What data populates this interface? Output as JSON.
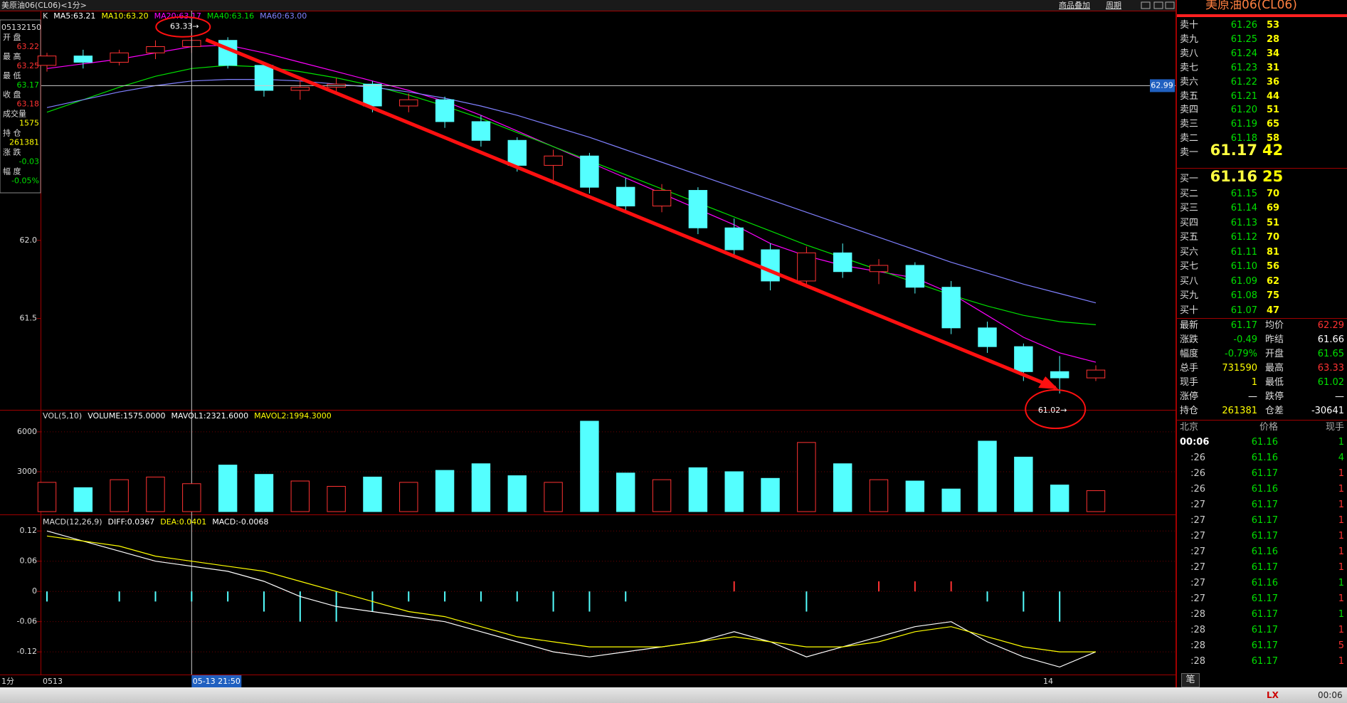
{
  "header": {
    "title": "美原油06(CL06)<1分>",
    "links": [
      "商品叠加",
      "周期"
    ]
  },
  "info": {
    "time": "05132150",
    "rows": [
      {
        "label": "开  盘",
        "value": "63.22",
        "color": "#ff3232"
      },
      {
        "label": "最  高",
        "value": "63.25",
        "color": "#ff3232"
      },
      {
        "label": "最  低",
        "value": "63.17",
        "color": "#00e000"
      },
      {
        "label": "收  盘",
        "value": "63.18",
        "color": "#ff3232"
      },
      {
        "label": "成交量",
        "value": "1575",
        "color": "#ffff00"
      },
      {
        "label": "持  仓",
        "value": "261381",
        "color": "#ffff00"
      },
      {
        "label": "涨  跌",
        "value": "-0.03",
        "color": "#00e000"
      },
      {
        "label": "幅  度",
        "value": "-0.05%",
        "color": "#00e000"
      }
    ]
  },
  "chart_data": [
    {
      "type": "candlestick",
      "title": "K",
      "legend": [
        {
          "label": "MA5:63.21",
          "color": "#ffffff"
        },
        {
          "label": "MA10:63.20",
          "color": "#ffff00"
        },
        {
          "label": "MA20:63.17",
          "color": "#ff00ff"
        },
        {
          "label": "MA40:63.16",
          "color": "#00e000"
        },
        {
          "label": "MA60:63.00",
          "color": "#8080ff"
        }
      ],
      "open": [
        63.12,
        63.18,
        63.14,
        63.2,
        63.24,
        63.28,
        63.12,
        62.96,
        62.98,
        63.0,
        62.86,
        62.9,
        62.76,
        62.64,
        62.48,
        62.54,
        62.34,
        62.22,
        62.32,
        62.08,
        61.94,
        61.74,
        61.92,
        61.8,
        61.84,
        61.7,
        61.44,
        61.32,
        61.16,
        61.12
      ],
      "high": [
        63.2,
        63.22,
        63.22,
        63.28,
        63.33,
        63.3,
        63.14,
        63.02,
        63.04,
        63.02,
        62.94,
        62.92,
        62.8,
        62.66,
        62.58,
        62.56,
        62.4,
        62.36,
        62.34,
        62.14,
        61.98,
        61.96,
        61.98,
        61.88,
        61.86,
        61.74,
        61.48,
        61.34,
        61.26,
        61.2
      ],
      "low": [
        63.08,
        63.1,
        63.12,
        63.16,
        63.2,
        63.1,
        62.92,
        62.9,
        62.94,
        62.82,
        62.82,
        62.72,
        62.6,
        62.44,
        62.36,
        62.3,
        62.18,
        62.18,
        62.04,
        61.9,
        61.68,
        61.72,
        61.76,
        61.72,
        61.66,
        61.4,
        61.28,
        61.1,
        61.02,
        61.1
      ],
      "close": [
        63.18,
        63.14,
        63.2,
        63.24,
        63.28,
        63.12,
        62.96,
        62.98,
        63.0,
        62.86,
        62.9,
        62.76,
        62.64,
        62.48,
        62.54,
        62.34,
        62.22,
        62.32,
        62.08,
        61.94,
        61.74,
        61.92,
        61.8,
        61.84,
        61.7,
        61.44,
        61.32,
        61.16,
        61.12,
        61.17
      ],
      "up_color": "#ff3232",
      "down_color": "#54ffff",
      "series": [
        {
          "color": "#ff00ff",
          "values": [
            63.1,
            63.13,
            63.16,
            63.2,
            63.24,
            63.25,
            63.2,
            63.14,
            63.08,
            63.02,
            62.96,
            62.89,
            62.8,
            62.7,
            62.6,
            62.5,
            62.4,
            62.3,
            62.2,
            62.1,
            61.98,
            61.9,
            61.84,
            61.8,
            61.76,
            61.66,
            61.52,
            61.38,
            61.28,
            61.22
          ]
        },
        {
          "color": "#00e000",
          "values": [
            62.82,
            62.9,
            62.98,
            63.05,
            63.1,
            63.12,
            63.11,
            63.08,
            63.04,
            62.99,
            62.93,
            62.86,
            62.78,
            62.69,
            62.6,
            62.51,
            62.42,
            62.33,
            62.24,
            62.15,
            62.06,
            61.97,
            61.89,
            61.81,
            61.73,
            61.65,
            61.58,
            61.52,
            61.48,
            61.46
          ]
        },
        {
          "color": "#8080ff",
          "values": [
            62.85,
            62.9,
            62.95,
            62.99,
            63.02,
            63.03,
            63.03,
            63.02,
            63.0,
            62.98,
            62.95,
            62.91,
            62.86,
            62.8,
            62.73,
            62.66,
            62.58,
            62.5,
            62.42,
            62.34,
            62.26,
            62.18,
            62.1,
            62.02,
            61.94,
            61.86,
            61.79,
            61.72,
            61.66,
            61.6
          ]
        }
      ],
      "ylim": [
        60.92,
        63.47
      ],
      "yticks": [
        {
          "value": 62,
          "label": "62.0"
        },
        61.5
      ],
      "crosshair": {
        "price": 62.99,
        "time": "05-13 21:50"
      },
      "annotations": [
        "63.33→",
        "61.02→"
      ]
    },
    {
      "type": "bar",
      "title": "VOL(5,10)",
      "legend": [
        {
          "label": "VOLUME:1575.0000",
          "color": "#ffffff"
        },
        {
          "label": "MAVOL1:2321.6000",
          "color": "#ffffff"
        },
        {
          "label": "MAVOL2:1994.3000",
          "color": "#ffff00"
        }
      ],
      "values": [
        2200,
        1800,
        2400,
        2600,
        2100,
        3500,
        2800,
        2300,
        1900,
        2600,
        2200,
        3100,
        3600,
        2700,
        2200,
        6800,
        2900,
        2400,
        3300,
        3000,
        2500,
        5200,
        3600,
        2400,
        2300,
        1700,
        5300,
        4100,
        2000,
        1575
      ],
      "ylim": [
        0,
        7600
      ],
      "yticks": [
        6000,
        3000
      ],
      "grid": true
    },
    {
      "type": "macd",
      "title": "MACD(12,26,9)",
      "legend": [
        {
          "label": "DIFF:0.0367",
          "color": "#ffffff"
        },
        {
          "label": "DEA:0.0401",
          "color": "#ffff00"
        },
        {
          "label": "MACD:-0.0068",
          "color": "#ffffff"
        }
      ],
      "values": [
        -0.02,
        0,
        -0.02,
        -0.02,
        -0.02,
        -0.02,
        -0.04,
        -0.06,
        -0.06,
        -0.04,
        -0.02,
        -0.02,
        -0.02,
        -0.02,
        -0.04,
        -0.04,
        -0.02,
        0,
        0,
        0.02,
        0,
        -0.04,
        0,
        0.02,
        0.02,
        0.02,
        -0.02,
        -0.04,
        -0.06,
        0
      ],
      "up_color": "#ff3232",
      "down_color": "#54ffff",
      "series": [
        {
          "color": "#ffffff",
          "values": [
            0.12,
            0.1,
            0.08,
            0.06,
            0.05,
            0.04,
            0.02,
            -0.01,
            -0.03,
            -0.04,
            -0.05,
            -0.06,
            -0.08,
            -0.1,
            -0.12,
            -0.13,
            -0.12,
            -0.11,
            -0.1,
            -0.08,
            -0.1,
            -0.13,
            -0.11,
            -0.09,
            -0.07,
            -0.06,
            -0.1,
            -0.13,
            -0.15,
            -0.12
          ]
        },
        {
          "color": "#ffff00",
          "values": [
            0.11,
            0.1,
            0.09,
            0.07,
            0.06,
            0.05,
            0.04,
            0.02,
            0.0,
            -0.02,
            -0.04,
            -0.05,
            -0.07,
            -0.09,
            -0.1,
            -0.11,
            -0.11,
            -0.11,
            -0.1,
            -0.09,
            -0.1,
            -0.11,
            -0.11,
            -0.1,
            -0.08,
            -0.07,
            -0.09,
            -0.11,
            -0.12,
            -0.12
          ]
        }
      ],
      "ylim": [
        -0.165,
        0.15
      ],
      "yticks": [
        0.12,
        0.06,
        0,
        -0.06,
        -0.12
      ],
      "grid": true
    }
  ],
  "time_axis": {
    "unit": "1分",
    "labels": [
      "0513",
      "14"
    ]
  },
  "quote": {
    "title": "美原油06(CL06)",
    "asks": [
      [
        "卖十",
        "61.26",
        "53"
      ],
      [
        "卖九",
        "61.25",
        "28"
      ],
      [
        "卖八",
        "61.24",
        "34"
      ],
      [
        "卖七",
        "61.23",
        "31"
      ],
      [
        "卖六",
        "61.22",
        "36"
      ],
      [
        "卖五",
        "61.21",
        "44"
      ],
      [
        "卖四",
        "61.20",
        "51"
      ],
      [
        "卖三",
        "61.19",
        "65"
      ],
      [
        "卖二",
        "61.18",
        "58"
      ],
      [
        "卖一",
        "61.17",
        "42"
      ]
    ],
    "bids": [
      [
        "买一",
        "61.16",
        "25"
      ],
      [
        "买二",
        "61.15",
        "70"
      ],
      [
        "买三",
        "61.14",
        "69"
      ],
      [
        "买四",
        "61.13",
        "51"
      ],
      [
        "买五",
        "61.12",
        "70"
      ],
      [
        "买六",
        "61.11",
        "81"
      ],
      [
        "买七",
        "61.10",
        "56"
      ],
      [
        "买八",
        "61.09",
        "62"
      ],
      [
        "买九",
        "61.08",
        "75"
      ],
      [
        "买十",
        "61.07",
        "47"
      ]
    ],
    "stats": [
      {
        "l1": "最新",
        "v1": "61.17",
        "c1": "#00e000",
        "l2": "均价",
        "v2": "62.29",
        "c2": "#ff3232"
      },
      {
        "l1": "涨跌",
        "v1": "-0.49",
        "c1": "#00e000",
        "l2": "昨结",
        "v2": "61.66",
        "c2": "#ffffff"
      },
      {
        "l1": "幅度",
        "v1": "-0.79%",
        "c1": "#00e000",
        "l2": "开盘",
        "v2": "61.65",
        "c2": "#00e000"
      },
      {
        "l1": "总手",
        "v1": "731590",
        "c1": "#ffff00",
        "l2": "最高",
        "v2": "63.33",
        "c2": "#ff3232"
      },
      {
        "l1": "现手",
        "v1": "1",
        "c1": "#ffff00",
        "l2": "最低",
        "v2": "61.02",
        "c2": "#00e000"
      },
      {
        "l1": "涨停",
        "v1": "—",
        "c1": "#ffffff",
        "l2": "跌停",
        "v2": "—",
        "c2": "#ffffff"
      },
      {
        "l1": "持仓",
        "v1": "261381",
        "c1": "#ffff00",
        "l2": "仓差",
        "v2": "-30641",
        "c2": "#ffffff"
      }
    ],
    "ticks_header": [
      "北京",
      "价格",
      "现手"
    ],
    "ticks": [
      {
        "time": "00:06",
        "price": "61.16",
        "volume": "1",
        "color": "#00e000"
      },
      {
        "time": ":26",
        "price": "61.16",
        "volume": "4",
        "color": "#00e000"
      },
      {
        "time": ":26",
        "price": "61.17",
        "volume": "1",
        "color": "#ff3232"
      },
      {
        "time": ":26",
        "price": "61.16",
        "volume": "1",
        "color": "#ff3232"
      },
      {
        "time": ":27",
        "price": "61.17",
        "volume": "1",
        "color": "#ff3232"
      },
      {
        "time": ":27",
        "price": "61.17",
        "volume": "1",
        "color": "#ff3232"
      },
      {
        "time": ":27",
        "price": "61.17",
        "volume": "1",
        "color": "#ff3232"
      },
      {
        "time": ":27",
        "price": "61.16",
        "volume": "1",
        "color": "#ff3232"
      },
      {
        "time": ":27",
        "price": "61.17",
        "volume": "1",
        "color": "#ff3232"
      },
      {
        "time": ":27",
        "price": "61.16",
        "volume": "1",
        "color": "#00e000"
      },
      {
        "time": ":27",
        "price": "61.17",
        "volume": "1",
        "color": "#ff3232"
      },
      {
        "time": ":28",
        "price": "61.17",
        "volume": "1",
        "color": "#00e000"
      },
      {
        "time": ":28",
        "price": "61.17",
        "volume": "1",
        "color": "#ff3232"
      },
      {
        "time": ":28",
        "price": "61.17",
        "volume": "5",
        "color": "#ff3232"
      },
      {
        "time": ":28",
        "price": "61.17",
        "volume": "1",
        "color": "#ff3232"
      }
    ],
    "tab": "笔"
  },
  "status": {
    "logo": "LX",
    "clock": "00:06"
  }
}
